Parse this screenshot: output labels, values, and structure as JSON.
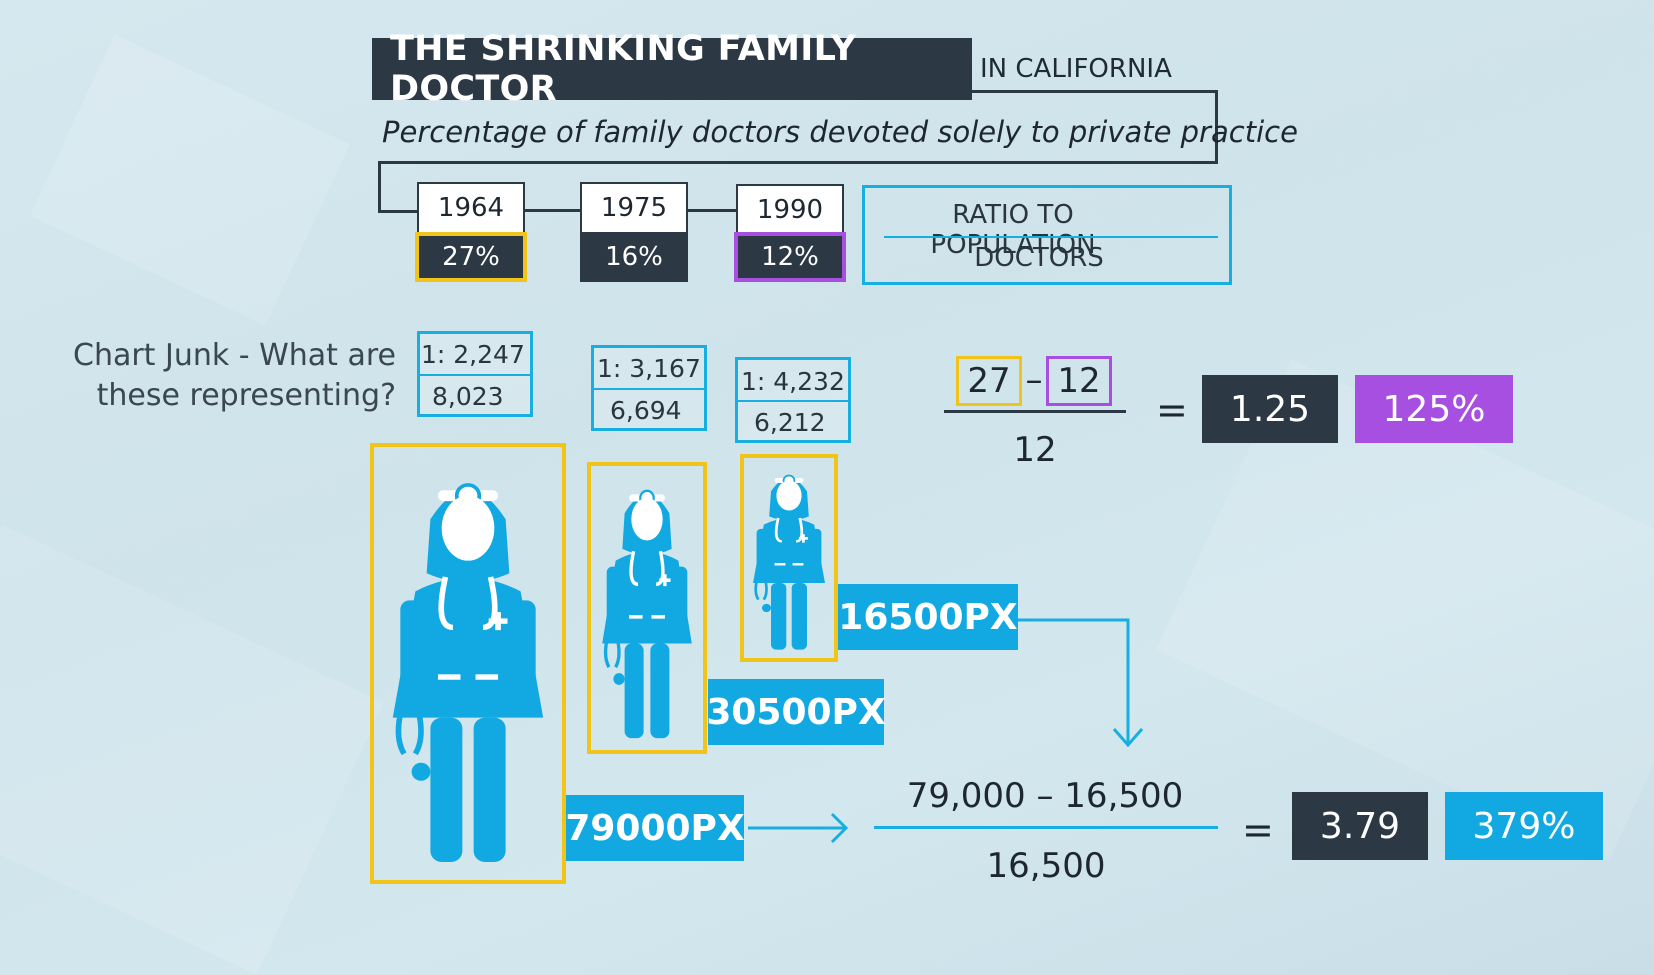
{
  "header": {
    "title": "THE SHRINKING FAMILY DOCTOR",
    "title_suffix": "IN CALIFORNIA",
    "subtitle": "Percentage of family doctors devoted solely to private practice"
  },
  "years": [
    {
      "year": "1964",
      "percent": "27%",
      "ratio_top": "1: 2,247",
      "ratio_bottom": "8,023",
      "pixels": "79000PX"
    },
    {
      "year": "1975",
      "percent": "16%",
      "ratio_top": "1: 3,167",
      "ratio_bottom": "6,694",
      "pixels": "30500PX"
    },
    {
      "year": "1990",
      "percent": "12%",
      "ratio_top": "1: 4,232",
      "ratio_bottom": "6,212",
      "pixels": "16500PX"
    }
  ],
  "legend": {
    "top": "RATIO TO POPULATION",
    "bottom": "DOCTORS"
  },
  "question": {
    "line1": "Chart Junk - What are",
    "line2": "these representing?"
  },
  "equation1": {
    "a": "27",
    "minus": "–",
    "b": "12",
    "denominator": "12",
    "equals": "=",
    "ratio": "1.25",
    "percent": "125%"
  },
  "equation2": {
    "numerator": "79,000 – 16,500",
    "denominator": "16,500",
    "equals": "=",
    "ratio": "3.79",
    "percent": "379%"
  },
  "colors": {
    "dark": "#2c3945",
    "blue": "#12a9e2",
    "yellow": "#f0c419",
    "purple": "#a64fe0",
    "background": "#d3e7ee"
  },
  "icons": [
    "doctor-icon",
    "arrow-right-icon",
    "arrow-down-icon"
  ]
}
